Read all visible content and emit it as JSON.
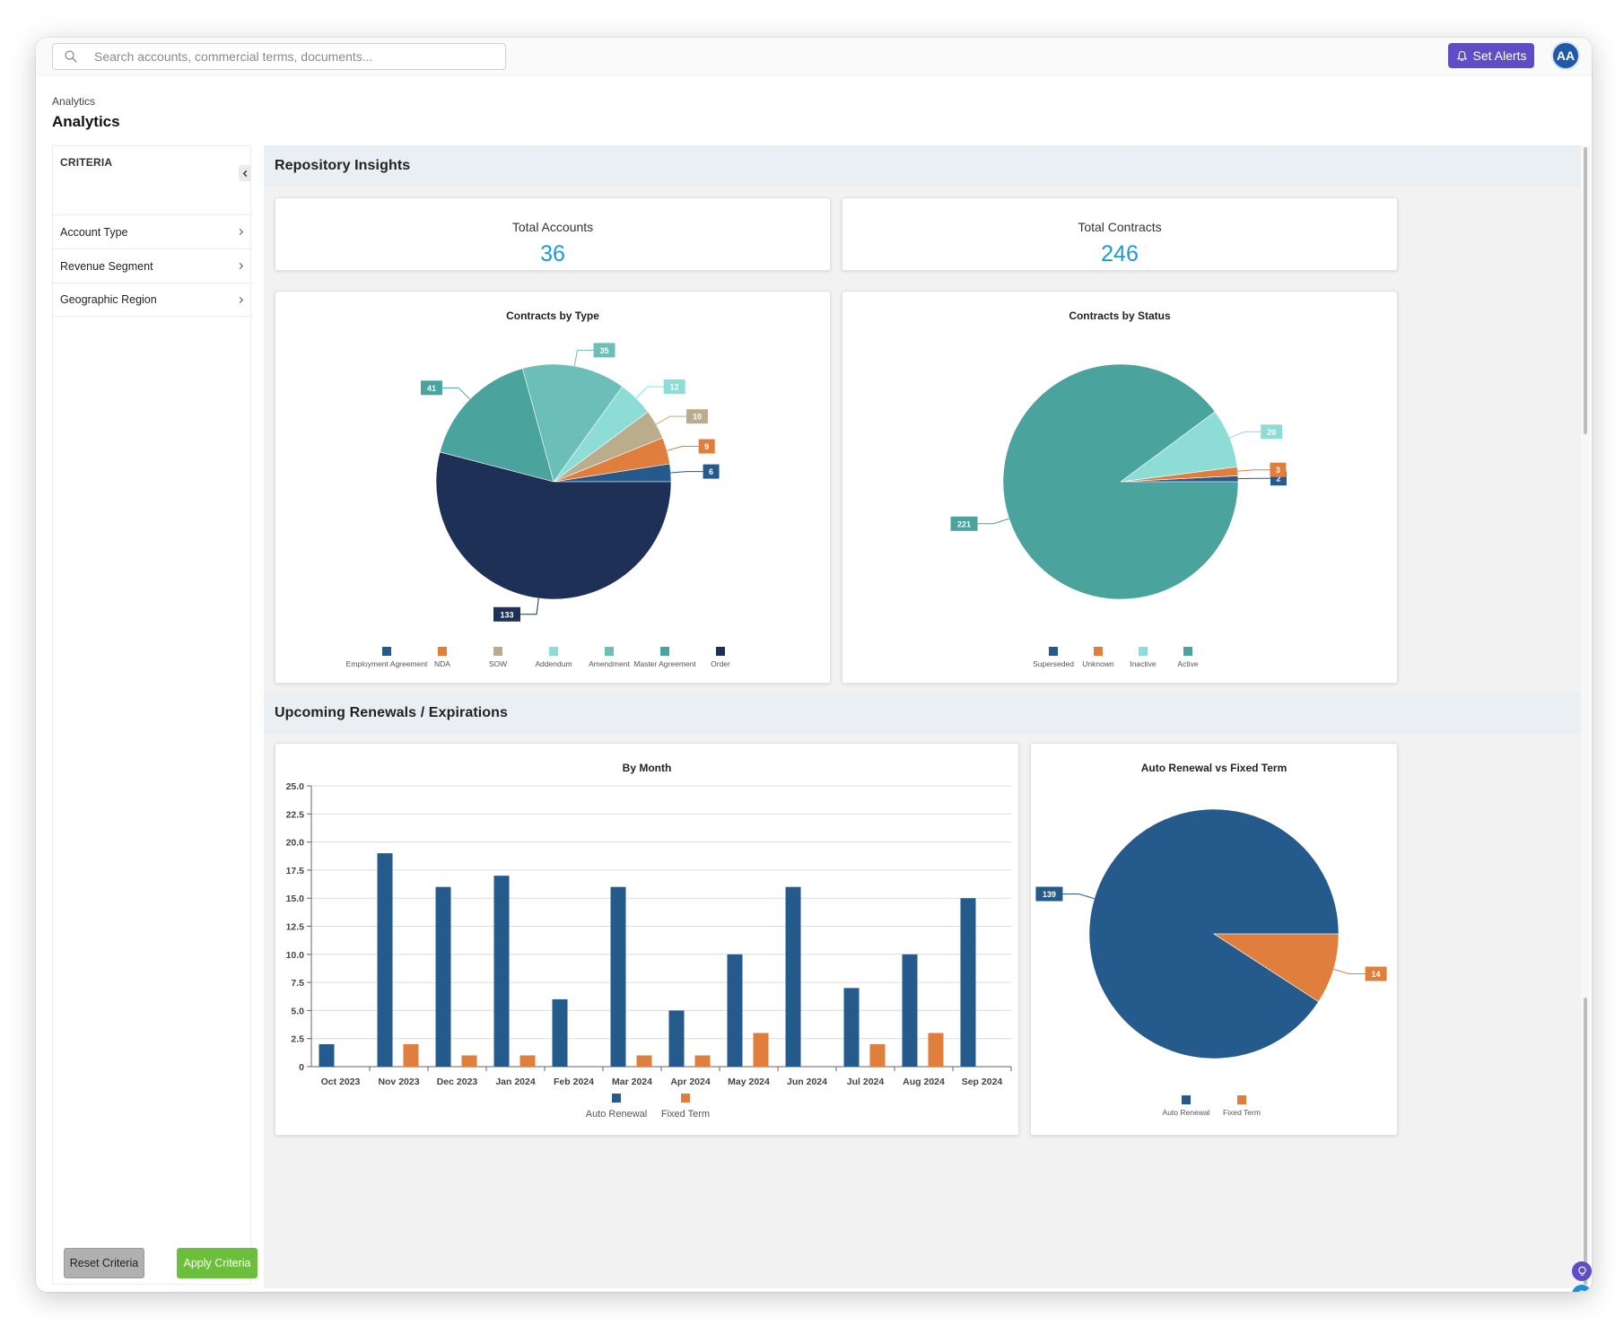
{
  "search": {
    "placeholder": "Search accounts, commercial terms, documents..."
  },
  "header": {
    "alerts_label": "Set Alerts",
    "avatar_initials": "AA"
  },
  "breadcrumb": "Analytics",
  "page_title": "Analytics",
  "sidebar": {
    "heading": "CRITERIA",
    "items": [
      {
        "label": "Account Type"
      },
      {
        "label": "Revenue Segment"
      },
      {
        "label": "Geographic Region"
      }
    ],
    "reset_label": "Reset Criteria",
    "apply_label": "Apply Criteria"
  },
  "repository": {
    "title": "Repository Insights",
    "total_accounts_label": "Total Accounts",
    "total_accounts_value": "36",
    "total_contracts_label": "Total Contracts",
    "total_contracts_value": "246"
  },
  "renewals": {
    "title": "Upcoming Renewals / Expirations"
  },
  "colors": {
    "accent": "#5e4dc4",
    "kpi": "#1d9ad6",
    "navy": "#1f3057",
    "blue": "#255a8c",
    "orange": "#e07e3e",
    "tan": "#b9ad8b",
    "light_cyan": "#8ddcd6",
    "teal_mid": "#6cbfb9",
    "teal": "#4aa39d",
    "apply": "#6cbf3c"
  },
  "chart_data": [
    {
      "id": "type",
      "type": "pie",
      "title": "Contracts by Type",
      "slices": [
        {
          "label": "Employment Agreement",
          "value": 6,
          "color": "#255a8c"
        },
        {
          "label": "NDA",
          "value": 9,
          "color": "#e07e3e"
        },
        {
          "label": "SOW",
          "value": 10,
          "color": "#b9ad8b"
        },
        {
          "label": "Addendum",
          "value": 12,
          "color": "#8ddcd6"
        },
        {
          "label": "Amendment",
          "value": 35,
          "color": "#6cbfb9"
        },
        {
          "label": "Master Agreement",
          "value": 41,
          "color": "#4aa39d"
        },
        {
          "label": "Order",
          "value": 133,
          "color": "#1f3057"
        }
      ]
    },
    {
      "id": "status",
      "type": "pie",
      "title": "Contracts by Status",
      "slices": [
        {
          "label": "Superseded",
          "value": 2,
          "color": "#255a8c"
        },
        {
          "label": "Unknown",
          "value": 3,
          "color": "#e07e3e"
        },
        {
          "label": "Inactive",
          "value": 20,
          "color": "#8ddcd6"
        },
        {
          "label": "Active",
          "value": 221,
          "color": "#4aa39d"
        }
      ]
    },
    {
      "id": "month",
      "type": "bar",
      "title": "By Month",
      "categories": [
        "Oct 2023",
        "Nov 2023",
        "Dec 2023",
        "Jan 2024",
        "Feb 2024",
        "Mar 2024",
        "Apr 2024",
        "May 2024",
        "Jun 2024",
        "Jul 2024",
        "Aug 2024",
        "Sep 2024"
      ],
      "series": [
        {
          "name": "Auto Renewal",
          "color": "#255a8c",
          "values": [
            2,
            19,
            16,
            17,
            6,
            16,
            5,
            10,
            16,
            7,
            10,
            15
          ]
        },
        {
          "name": "Fixed Term",
          "color": "#e07e3e",
          "values": [
            0,
            2,
            1,
            1,
            0,
            1,
            1,
            3,
            0,
            2,
            3,
            0
          ]
        }
      ],
      "ylim": [
        0,
        25
      ],
      "yticks": [
        "0",
        "2.5",
        "5.0",
        "7.5",
        "10.0",
        "12.5",
        "15.0",
        "17.5",
        "20.0",
        "22.5",
        "25.0"
      ],
      "grid": true,
      "legend": "bottom"
    },
    {
      "id": "renewal",
      "type": "pie",
      "title": "Auto Renewal vs Fixed Term",
      "slices": [
        {
          "label": "Auto Renewal",
          "value": 139,
          "color": "#255a8c"
        },
        {
          "label": "Fixed Term",
          "value": 14,
          "color": "#e07e3e"
        }
      ]
    }
  ]
}
